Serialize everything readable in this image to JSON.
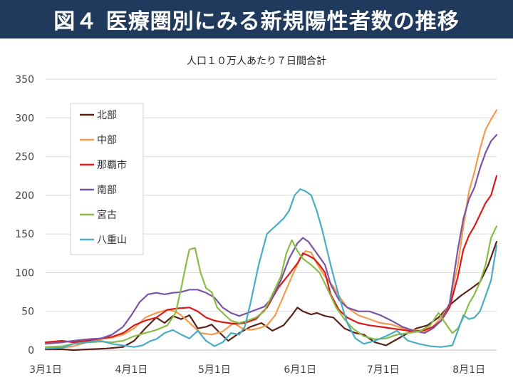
{
  "header": {
    "title": "図４ 医療圏別にみる新規陽性者数の推移"
  },
  "chart_data": {
    "type": "line",
    "title": "",
    "subtitle": "人口１０万人あたり７日間合計",
    "xlabel": "",
    "ylabel": "",
    "ylim": [
      0,
      350
    ],
    "yticks": [
      0,
      50,
      100,
      150,
      200,
      250,
      300,
      350
    ],
    "xlim": [
      0,
      163
    ],
    "xticks": [
      {
        "label": "3月1日",
        "day": 0
      },
      {
        "label": "4月1日",
        "day": 31
      },
      {
        "label": "5月1日",
        "day": 61
      },
      {
        "label": "6月1日",
        "day": 92
      },
      {
        "label": "7月1日",
        "day": 122
      },
      {
        "label": "8月1日",
        "day": 153
      }
    ],
    "grid": "horizontal",
    "legend": "top-left",
    "series": [
      {
        "name": "北部",
        "color": "#5a2318",
        "points": [
          [
            0,
            1
          ],
          [
            6,
            1
          ],
          [
            10,
            0
          ],
          [
            16,
            1
          ],
          [
            22,
            2
          ],
          [
            28,
            4
          ],
          [
            32,
            12
          ],
          [
            36,
            28
          ],
          [
            40,
            42
          ],
          [
            43,
            35
          ],
          [
            46,
            44
          ],
          [
            49,
            40
          ],
          [
            52,
            45
          ],
          [
            55,
            28
          ],
          [
            58,
            30
          ],
          [
            60,
            33
          ],
          [
            63,
            22
          ],
          [
            66,
            12
          ],
          [
            70,
            22
          ],
          [
            74,
            30
          ],
          [
            78,
            35
          ],
          [
            82,
            25
          ],
          [
            86,
            32
          ],
          [
            89,
            45
          ],
          [
            91,
            55
          ],
          [
            93,
            50
          ],
          [
            96,
            46
          ],
          [
            98,
            48
          ],
          [
            101,
            44
          ],
          [
            104,
            42
          ],
          [
            108,
            28
          ],
          [
            112,
            22
          ],
          [
            115,
            20
          ],
          [
            119,
            10
          ],
          [
            123,
            6
          ],
          [
            126,
            12
          ],
          [
            130,
            20
          ],
          [
            134,
            28
          ],
          [
            138,
            32
          ],
          [
            142,
            42
          ],
          [
            146,
            58
          ],
          [
            150,
            70
          ],
          [
            154,
            80
          ],
          [
            157,
            88
          ],
          [
            160,
            110
          ],
          [
            163,
            140
          ]
        ]
      },
      {
        "name": "中部",
        "color": "#f29b4c",
        "points": [
          [
            0,
            2
          ],
          [
            6,
            3
          ],
          [
            10,
            5
          ],
          [
            15,
            10
          ],
          [
            20,
            14
          ],
          [
            24,
            16
          ],
          [
            28,
            20
          ],
          [
            32,
            28
          ],
          [
            36,
            42
          ],
          [
            40,
            48
          ],
          [
            44,
            52
          ],
          [
            47,
            50
          ],
          [
            50,
            42
          ],
          [
            53,
            32
          ],
          [
            56,
            22
          ],
          [
            60,
            20
          ],
          [
            64,
            24
          ],
          [
            68,
            35
          ],
          [
            71,
            28
          ],
          [
            74,
            26
          ],
          [
            77,
            28
          ],
          [
            80,
            32
          ],
          [
            83,
            45
          ],
          [
            86,
            70
          ],
          [
            89,
            95
          ],
          [
            92,
            118
          ],
          [
            94,
            128
          ],
          [
            96,
            126
          ],
          [
            98,
            112
          ],
          [
            101,
            95
          ],
          [
            104,
            82
          ],
          [
            106,
            70
          ],
          [
            109,
            55
          ],
          [
            113,
            45
          ],
          [
            117,
            40
          ],
          [
            121,
            35
          ],
          [
            125,
            33
          ],
          [
            129,
            28
          ],
          [
            133,
            26
          ],
          [
            137,
            24
          ],
          [
            140,
            30
          ],
          [
            143,
            42
          ],
          [
            146,
            60
          ],
          [
            149,
            110
          ],
          [
            151,
            160
          ],
          [
            153,
            205
          ],
          [
            155,
            230
          ],
          [
            157,
            260
          ],
          [
            159,
            285
          ],
          [
            161,
            298
          ],
          [
            163,
            310
          ]
        ]
      },
      {
        "name": "那覇市",
        "color": "#d81b1b",
        "points": [
          [
            0,
            10
          ],
          [
            6,
            12
          ],
          [
            10,
            10
          ],
          [
            15,
            12
          ],
          [
            20,
            15
          ],
          [
            24,
            17
          ],
          [
            28,
            22
          ],
          [
            32,
            32
          ],
          [
            36,
            38
          ],
          [
            40,
            42
          ],
          [
            44,
            52
          ],
          [
            48,
            54
          ],
          [
            52,
            55
          ],
          [
            55,
            50
          ],
          [
            58,
            42
          ],
          [
            61,
            38
          ],
          [
            64,
            36
          ],
          [
            68,
            34
          ],
          [
            72,
            35
          ],
          [
            76,
            40
          ],
          [
            80,
            55
          ],
          [
            84,
            80
          ],
          [
            88,
            98
          ],
          [
            91,
            112
          ],
          [
            93,
            125
          ],
          [
            95,
            122
          ],
          [
            97,
            118
          ],
          [
            99,
            110
          ],
          [
            101,
            100
          ],
          [
            103,
            72
          ],
          [
            106,
            52
          ],
          [
            109,
            42
          ],
          [
            113,
            35
          ],
          [
            117,
            32
          ],
          [
            121,
            30
          ],
          [
            125,
            28
          ],
          [
            129,
            26
          ],
          [
            133,
            24
          ],
          [
            137,
            26
          ],
          [
            140,
            30
          ],
          [
            143,
            38
          ],
          [
            146,
            55
          ],
          [
            149,
            95
          ],
          [
            151,
            130
          ],
          [
            153,
            148
          ],
          [
            155,
            160
          ],
          [
            157,
            175
          ],
          [
            159,
            190
          ],
          [
            161,
            200
          ],
          [
            163,
            225
          ]
        ]
      },
      {
        "name": "南部",
        "color": "#7a55a5",
        "points": [
          [
            0,
            8
          ],
          [
            6,
            10
          ],
          [
            10,
            12
          ],
          [
            15,
            14
          ],
          [
            20,
            15
          ],
          [
            24,
            20
          ],
          [
            28,
            30
          ],
          [
            31,
            45
          ],
          [
            34,
            62
          ],
          [
            37,
            72
          ],
          [
            40,
            74
          ],
          [
            43,
            72
          ],
          [
            46,
            74
          ],
          [
            49,
            75
          ],
          [
            52,
            78
          ],
          [
            55,
            78
          ],
          [
            58,
            74
          ],
          [
            61,
            68
          ],
          [
            64,
            55
          ],
          [
            67,
            48
          ],
          [
            70,
            44
          ],
          [
            73,
            48
          ],
          [
            76,
            52
          ],
          [
            79,
            56
          ],
          [
            82,
            68
          ],
          [
            85,
            90
          ],
          [
            88,
            118
          ],
          [
            91,
            138
          ],
          [
            93,
            145
          ],
          [
            95,
            140
          ],
          [
            97,
            130
          ],
          [
            99,
            120
          ],
          [
            101,
            110
          ],
          [
            103,
            85
          ],
          [
            106,
            65
          ],
          [
            109,
            55
          ],
          [
            113,
            50
          ],
          [
            117,
            50
          ],
          [
            121,
            45
          ],
          [
            125,
            38
          ],
          [
            129,
            30
          ],
          [
            133,
            25
          ],
          [
            137,
            22
          ],
          [
            140,
            28
          ],
          [
            143,
            38
          ],
          [
            146,
            60
          ],
          [
            149,
            130
          ],
          [
            151,
            170
          ],
          [
            153,
            195
          ],
          [
            155,
            210
          ],
          [
            157,
            235
          ],
          [
            159,
            255
          ],
          [
            161,
            270
          ],
          [
            163,
            278
          ]
        ]
      },
      {
        "name": "宮古",
        "color": "#8bbc45",
        "points": [
          [
            0,
            4
          ],
          [
            6,
            5
          ],
          [
            10,
            8
          ],
          [
            15,
            10
          ],
          [
            20,
            11
          ],
          [
            24,
            10
          ],
          [
            28,
            12
          ],
          [
            32,
            18
          ],
          [
            36,
            22
          ],
          [
            40,
            26
          ],
          [
            44,
            32
          ],
          [
            47,
            48
          ],
          [
            49,
            80
          ],
          [
            51,
            115
          ],
          [
            52,
            130
          ],
          [
            54,
            132
          ],
          [
            56,
            100
          ],
          [
            58,
            80
          ],
          [
            60,
            75
          ],
          [
            62,
            55
          ],
          [
            64,
            48
          ],
          [
            67,
            38
          ],
          [
            70,
            35
          ],
          [
            73,
            38
          ],
          [
            76,
            42
          ],
          [
            79,
            50
          ],
          [
            82,
            72
          ],
          [
            85,
            95
          ],
          [
            87,
            125
          ],
          [
            89,
            142
          ],
          [
            91,
            128
          ],
          [
            93,
            118
          ],
          [
            96,
            110
          ],
          [
            99,
            100
          ],
          [
            102,
            78
          ],
          [
            105,
            55
          ],
          [
            108,
            40
          ],
          [
            111,
            28
          ],
          [
            115,
            18
          ],
          [
            119,
            14
          ],
          [
            123,
            15
          ],
          [
            127,
            20
          ],
          [
            131,
            22
          ],
          [
            135,
            24
          ],
          [
            139,
            32
          ],
          [
            142,
            48
          ],
          [
            145,
            32
          ],
          [
            147,
            22
          ],
          [
            149,
            28
          ],
          [
            151,
            42
          ],
          [
            153,
            60
          ],
          [
            155,
            72
          ],
          [
            157,
            88
          ],
          [
            159,
            110
          ],
          [
            161,
            145
          ],
          [
            163,
            160
          ]
        ]
      },
      {
        "name": "八重山",
        "color": "#4bacc6",
        "points": [
          [
            0,
            2
          ],
          [
            6,
            3
          ],
          [
            10,
            8
          ],
          [
            15,
            10
          ],
          [
            20,
            12
          ],
          [
            24,
            8
          ],
          [
            28,
            6
          ],
          [
            32,
            4
          ],
          [
            35,
            6
          ],
          [
            38,
            12
          ],
          [
            40,
            14
          ],
          [
            43,
            22
          ],
          [
            46,
            26
          ],
          [
            49,
            20
          ],
          [
            52,
            15
          ],
          [
            55,
            25
          ],
          [
            58,
            12
          ],
          [
            61,
            5
          ],
          [
            64,
            10
          ],
          [
            67,
            22
          ],
          [
            70,
            20
          ],
          [
            72,
            30
          ],
          [
            74,
            60
          ],
          [
            77,
            110
          ],
          [
            80,
            150
          ],
          [
            83,
            160
          ],
          [
            86,
            170
          ],
          [
            88,
            180
          ],
          [
            90,
            200
          ],
          [
            92,
            208
          ],
          [
            94,
            205
          ],
          [
            96,
            200
          ],
          [
            98,
            180
          ],
          [
            100,
            155
          ],
          [
            103,
            110
          ],
          [
            106,
            70
          ],
          [
            109,
            35
          ],
          [
            112,
            15
          ],
          [
            115,
            8
          ],
          [
            119,
            12
          ],
          [
            123,
            18
          ],
          [
            127,
            25
          ],
          [
            131,
            12
          ],
          [
            135,
            8
          ],
          [
            139,
            5
          ],
          [
            143,
            4
          ],
          [
            147,
            6
          ],
          [
            149,
            25
          ],
          [
            151,
            45
          ],
          [
            153,
            40
          ],
          [
            155,
            42
          ],
          [
            157,
            50
          ],
          [
            159,
            70
          ],
          [
            161,
            90
          ],
          [
            163,
            135
          ]
        ]
      }
    ]
  }
}
